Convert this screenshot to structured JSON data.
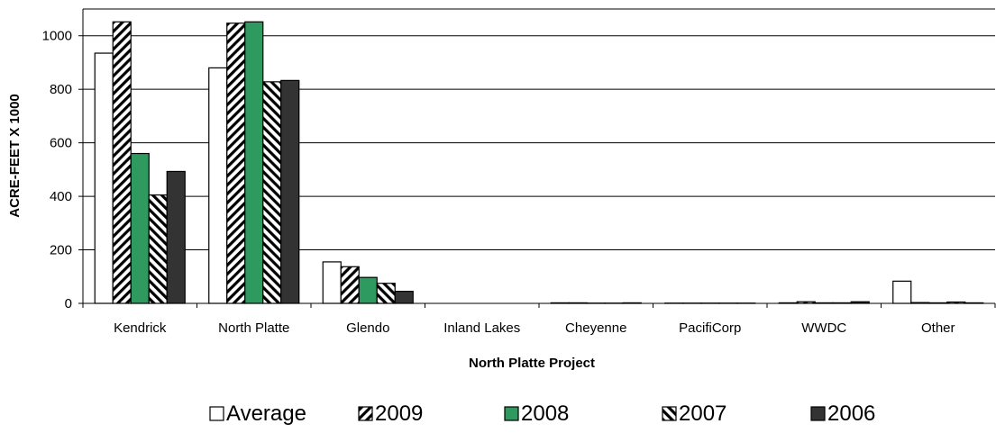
{
  "colors": {
    "average": "#ffffff",
    "y2008": "#2e9a5f",
    "y2006": "#333333",
    "grid": "#000000",
    "stroke": "#000000"
  },
  "chart_data": {
    "type": "bar",
    "title": "",
    "xlabel": "North Platte Project",
    "ylabel": "ACRE-FEET X 1000",
    "ylim": [
      0,
      1100
    ],
    "yticks": [
      0,
      200,
      400,
      600,
      800,
      1000
    ],
    "grid": "horizontal",
    "legend_position": "bottom",
    "categories": [
      "Kendrick",
      "North Platte",
      "Glendo",
      "Inland Lakes",
      "Cheyenne",
      "PacifiCorp",
      "WWDC",
      "Other"
    ],
    "series": [
      {
        "name": "Average",
        "pattern": "white",
        "values": [
          935,
          880,
          155,
          0,
          2,
          1,
          2,
          83
        ]
      },
      {
        "name": "2009",
        "pattern": "diag-forward",
        "values": [
          1052,
          1047,
          137,
          0,
          2,
          1,
          6,
          3
        ]
      },
      {
        "name": "2008",
        "pattern": "solid-green",
        "values": [
          560,
          1052,
          97,
          0,
          1,
          1,
          2,
          2
        ]
      },
      {
        "name": "2007",
        "pattern": "diag-back",
        "values": [
          405,
          828,
          75,
          0,
          1,
          1,
          2,
          5
        ]
      },
      {
        "name": "2006",
        "pattern": "solid-dark",
        "values": [
          493,
          833,
          45,
          0,
          2,
          1,
          6,
          2
        ]
      }
    ]
  }
}
